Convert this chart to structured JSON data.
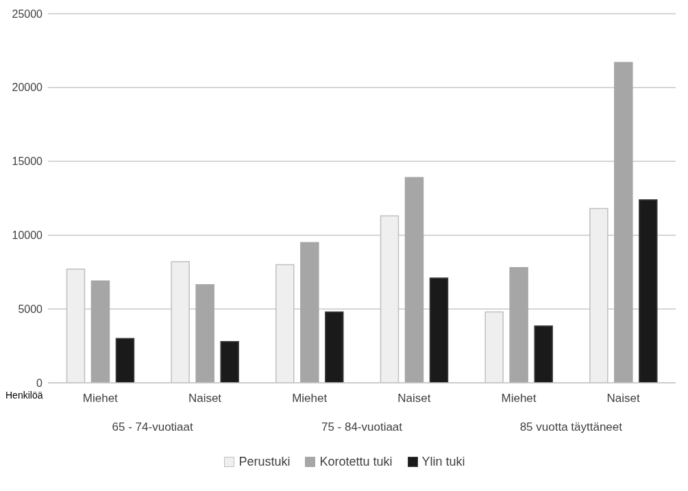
{
  "chart_data": {
    "type": "bar",
    "ylabel": "Henkilöä",
    "categories": [
      "Miehet",
      "Naiset",
      "Miehet",
      "Naiset",
      "Miehet",
      "Naiset"
    ],
    "annotations": [
      "65 - 74-vuotiaat",
      "75 - 84-vuotiaat",
      "85 vuotta täyttäneet"
    ],
    "series": [
      {
        "name": "Perustuki",
        "color": "#efefef",
        "values": [
          7700,
          8200,
          8000,
          11300,
          4800,
          11800
        ]
      },
      {
        "name": "Korotettu tuki",
        "color": "#a6a6a6",
        "values": [
          6900,
          6650,
          9500,
          13900,
          7800,
          21700
        ]
      },
      {
        "name": "Ylin tuki",
        "color": "#1a1a1a",
        "values": [
          3000,
          2800,
          4800,
          7100,
          3850,
          12400
        ]
      }
    ],
    "ylim": [
      0,
      25000
    ],
    "yticks": [
      0,
      5000,
      10000,
      15000,
      20000,
      25000
    ],
    "grid": "y",
    "legend": "bottom"
  }
}
